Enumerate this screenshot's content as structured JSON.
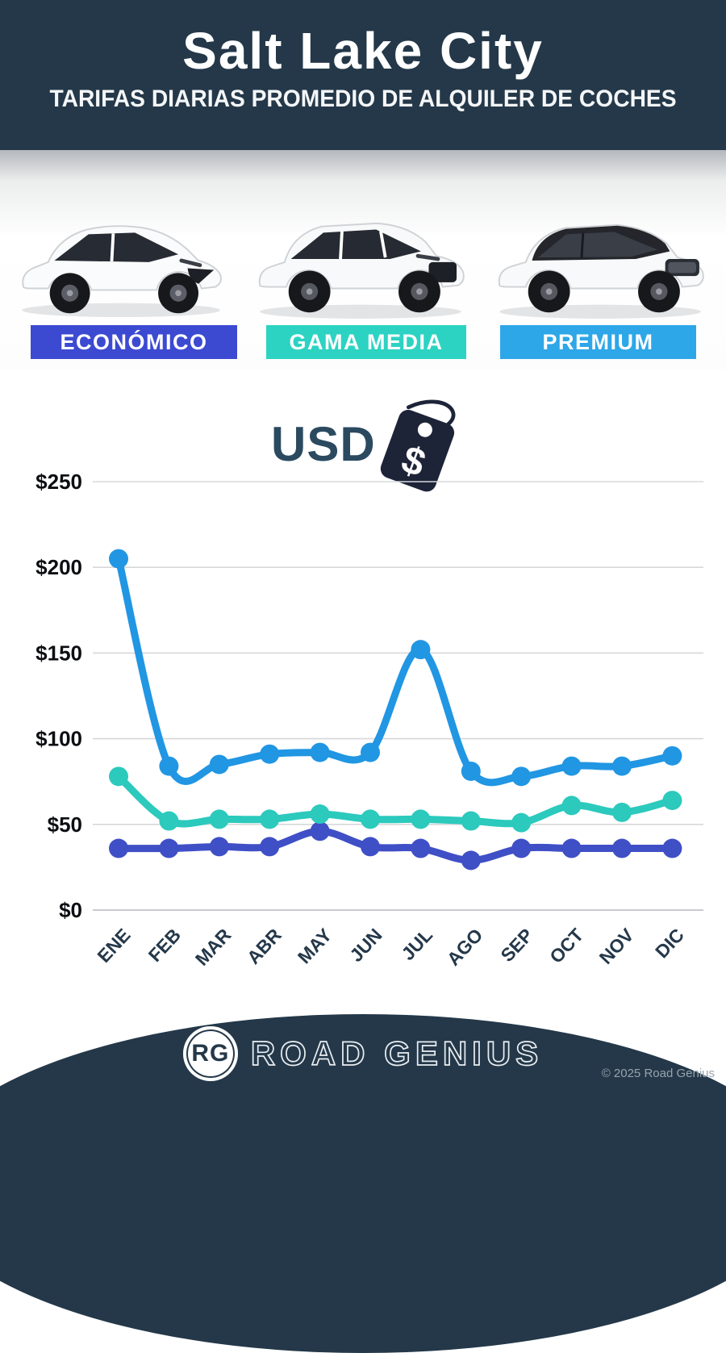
{
  "header": {
    "title": "Salt Lake City",
    "subtitle": "TARIFAS DIARIAS PROMEDIO DE ALQUILER DE COCHES"
  },
  "categories": [
    {
      "label": "ECONÓMICO",
      "color": "#3c4ad2"
    },
    {
      "label": "GAMA MEDIA",
      "color": "#2cd3c2"
    },
    {
      "label": "PREMIUM",
      "color": "#2da7e8"
    }
  ],
  "currency_label": "USD",
  "chart_data": {
    "type": "line",
    "x": [
      "ENE",
      "FEB",
      "MAR",
      "ABR",
      "MAY",
      "JUN",
      "JUL",
      "AGO",
      "SEP",
      "OCT",
      "NOV",
      "DIC"
    ],
    "series": [
      {
        "name": "PREMIUM",
        "color": "#2196e3",
        "values": [
          205,
          84,
          85,
          91,
          92,
          92,
          152,
          81,
          78,
          84,
          84,
          90
        ]
      },
      {
        "name": "GAMA MEDIA",
        "color": "#2cc9bd",
        "values": [
          78,
          52,
          53,
          53,
          56,
          53,
          53,
          52,
          51,
          61,
          57,
          64
        ]
      },
      {
        "name": "ECONÓMICO",
        "color": "#3f4fc6",
        "values": [
          36,
          36,
          37,
          37,
          46,
          37,
          36,
          29,
          36,
          36,
          36,
          36
        ]
      }
    ],
    "title": "Salt Lake City — Tarifas diarias promedio de alquiler de coches (USD)",
    "xlabel": "",
    "ylabel": "USD",
    "ylim": [
      0,
      250
    ],
    "ytick_step": 50,
    "ytick_prefix": "$",
    "grid": true,
    "legend_position": "category-bars-above-chart",
    "grid_color": "#d7d8da",
    "axis_label_color": "#0c0e12",
    "month_label_color": "#24384a"
  },
  "footer": {
    "logo_text": "RG",
    "brand": "ROAD GENIUS",
    "copyright": "© 2025 Road Genius"
  }
}
